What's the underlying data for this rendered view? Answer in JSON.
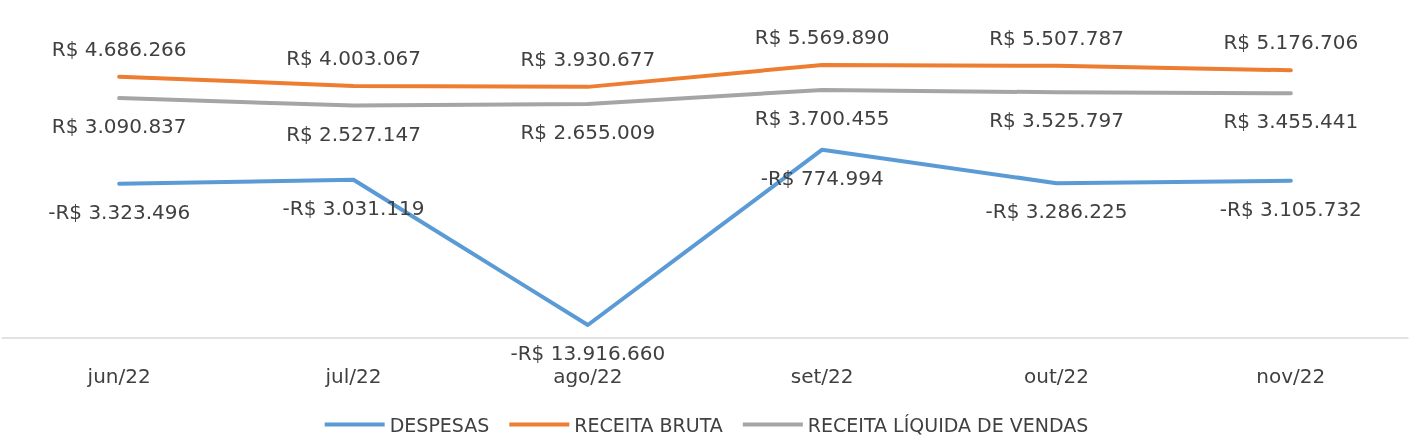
{
  "chart_data": {
    "type": "line",
    "categories": [
      "jun/22",
      "jul/22",
      "ago/22",
      "set/22",
      "out/22",
      "nov/22"
    ],
    "series": [
      {
        "name": "DESPESAS",
        "color": "#5b9bd5",
        "values": [
          -3323496,
          -3031119,
          -13916660,
          -774994,
          -3286225,
          -3105732
        ],
        "value_labels": [
          "-R$ 3.323.496",
          "-R$ 3.031.119",
          "-R$ 13.916.660",
          "-R$ 774.994",
          "-R$ 3.286.225",
          "-R$ 3.105.732"
        ]
      },
      {
        "name": "RECEITA BRUTA",
        "color": "#ed7d31",
        "values": [
          4686266,
          4003067,
          3930677,
          5569890,
          5507787,
          5176706
        ],
        "value_labels": [
          "R$ 4.686.266",
          "R$ 4.003.067",
          "R$ 3.930.677",
          "R$ 5.569.890",
          "R$ 5.507.787",
          "R$ 5.176.706"
        ]
      },
      {
        "name": "RECEITA LÍQUIDA DE VENDAS",
        "color": "#a5a5a5",
        "values": [
          3090837,
          2527147,
          2655009,
          3700455,
          3525797,
          3455441
        ],
        "value_labels": [
          "R$ 3.090.837",
          "R$ 2.527.147",
          "R$ 2.655.009",
          "R$ 3.700.455",
          "R$ 3.525.797",
          "R$ 3.455.441"
        ]
      }
    ],
    "legend": "bottom",
    "marker": "none",
    "line_style": "solid",
    "grid": false
  }
}
